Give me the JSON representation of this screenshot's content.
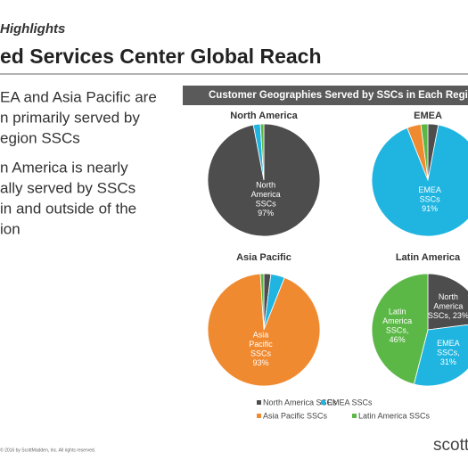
{
  "header": {
    "section": "Highlights",
    "title": "ed Services Center Global Reach"
  },
  "bullets": [
    [
      "EA and Asia Pacific are",
      "n primarily served by",
      "egion SSCs"
    ],
    [
      "n America is nearly",
      "ally served by SSCs",
      "in and outside of the",
      "ion"
    ]
  ],
  "panel_title": "Customer Geographies Served by SSCs in Each Region",
  "chart_data": [
    {
      "type": "pie",
      "title": "North America",
      "categories": [
        "North America SSCs",
        "EMEA SSCs",
        "Asia Pacific SSCs",
        "Latin America SSCs"
      ],
      "colors": [
        "#4d4d4d",
        "#1fb5e0",
        "#f08a30",
        "#5cb846"
      ],
      "values": [
        97,
        2,
        0,
        1
      ],
      "value_labels": [
        [
          "North",
          "America",
          "SSCs",
          "97%"
        ],
        null,
        null,
        null
      ]
    },
    {
      "type": "pie",
      "title": "EMEA",
      "categories": [
        "North America SSCs",
        "EMEA SSCs",
        "Asia Pacific SSCs",
        "Latin America SSCs"
      ],
      "colors": [
        "#4d4d4d",
        "#1fb5e0",
        "#f08a30",
        "#5cb846"
      ],
      "values": [
        3,
        91,
        4,
        2
      ],
      "value_labels": [
        null,
        [
          "EMEA",
          "SSCs",
          "91%"
        ],
        null,
        null
      ]
    },
    {
      "type": "pie",
      "title": "Asia Pacific",
      "categories": [
        "North America SSCs",
        "EMEA SSCs",
        "Asia Pacific SSCs",
        "Latin America SSCs"
      ],
      "colors": [
        "#4d4d4d",
        "#1fb5e0",
        "#f08a30",
        "#5cb846"
      ],
      "values": [
        2,
        4,
        93,
        1
      ],
      "value_labels": [
        null,
        null,
        [
          "Asia",
          "Pacific",
          "SSCs",
          "93%"
        ],
        null
      ]
    },
    {
      "type": "pie",
      "title": "Latin America",
      "categories": [
        "North America SSCs",
        "EMEA SSCs",
        "Asia Pacific SSCs",
        "Latin America SSCs"
      ],
      "colors": [
        "#4d4d4d",
        "#1fb5e0",
        "#f08a30",
        "#5cb846"
      ],
      "values": [
        23,
        31,
        0,
        46
      ],
      "value_labels": [
        [
          "North",
          "America",
          "SSCs, 23%"
        ],
        [
          "EMEA",
          "SSCs,",
          "31%"
        ],
        null,
        [
          "Latin",
          "America",
          "SSCs,",
          "46%"
        ]
      ]
    }
  ],
  "footer": {
    "copyright": "© 2016 by ScottMadden, Inc. All rights reserved.",
    "logo": "scottm"
  }
}
